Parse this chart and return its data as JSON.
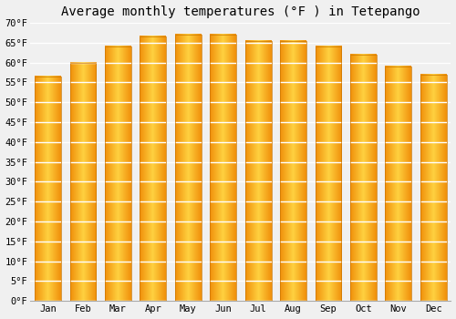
{
  "title": "Average monthly temperatures (°F ) in Tetepango",
  "months": [
    "Jan",
    "Feb",
    "Mar",
    "Apr",
    "May",
    "Jun",
    "Jul",
    "Aug",
    "Sep",
    "Oct",
    "Nov",
    "Dec"
  ],
  "values": [
    56.5,
    60.0,
    64.0,
    66.5,
    67.0,
    67.0,
    65.5,
    65.5,
    64.0,
    62.0,
    59.0,
    57.0
  ],
  "bar_color_center": "#FFD060",
  "bar_color_edge": "#F0900A",
  "ylim": [
    0,
    70
  ],
  "yticks": [
    0,
    5,
    10,
    15,
    20,
    25,
    30,
    35,
    40,
    45,
    50,
    55,
    60,
    65,
    70
  ],
  "ytick_labels": [
    "0°F",
    "5°F",
    "10°F",
    "15°F",
    "20°F",
    "25°F",
    "30°F",
    "35°F",
    "40°F",
    "45°F",
    "50°F",
    "55°F",
    "60°F",
    "65°F",
    "70°F"
  ],
  "background_color": "#f0f0f0",
  "grid_color": "#ffffff",
  "title_fontsize": 10,
  "tick_fontsize": 7.5,
  "font_family": "monospace",
  "bar_width": 0.75
}
